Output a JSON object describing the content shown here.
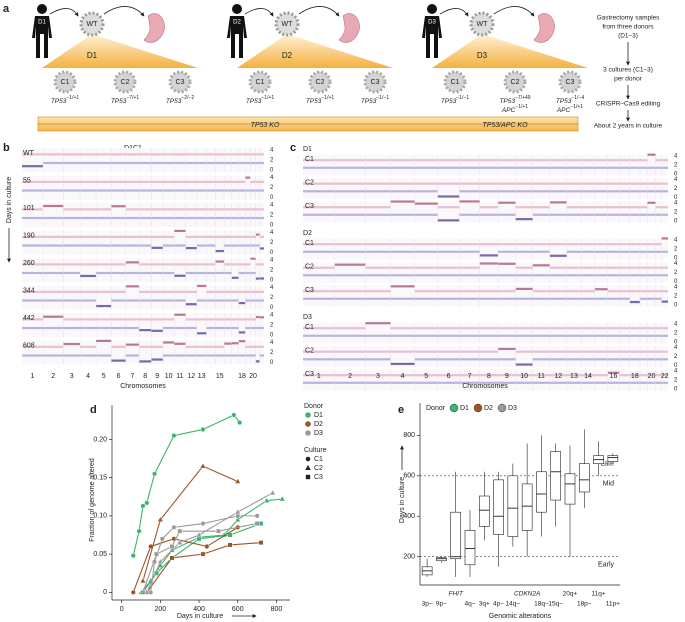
{
  "panel_a": {
    "label": "a",
    "donors": [
      {
        "name": "D1",
        "wt": "WT",
        "cultures": [
          {
            "name": "C1",
            "genotype": [
              {
                "gene": "TP53",
                "sup": "−1/+1"
              }
            ]
          },
          {
            "name": "C2",
            "genotype": [
              {
                "gene": "TP53",
                "sup": "−7/+1"
              }
            ]
          },
          {
            "name": "C3",
            "genotype": [
              {
                "gene": "TP53",
                "sup": "−2/−2"
              }
            ]
          }
        ]
      },
      {
        "name": "D2",
        "wt": "WT",
        "cultures": [
          {
            "name": "C1",
            "genotype": [
              {
                "gene": "TP53",
                "sup": "−1/+1"
              }
            ]
          },
          {
            "name": "C2",
            "genotype": [
              {
                "gene": "TP53",
                "sup": "−1/+1"
              }
            ]
          },
          {
            "name": "C3",
            "genotype": [
              {
                "gene": "TP53",
                "sup": "−1/−1"
              }
            ]
          }
        ]
      },
      {
        "name": "D3",
        "wt": "WT",
        "cultures": [
          {
            "name": "C1",
            "genotype": [
              {
                "gene": "TP53",
                "sup": "−1/−1"
              }
            ]
          },
          {
            "name": "C2",
            "genotype": [
              {
                "gene": "TP53",
                "sup": "−7/+49"
              },
              {
                "gene": "APC",
                "sup": "−1/+1"
              }
            ]
          },
          {
            "name": "C3",
            "genotype": [
              {
                "gene": "TP53",
                "sup": "−1/−4"
              },
              {
                "gene": "APC",
                "sup": "−1/+1"
              }
            ]
          }
        ]
      }
    ],
    "ko_labels": [
      "TP53 KO",
      "TP53/APC KO"
    ],
    "steps": [
      [
        "Gastrectomy samples",
        "from three donors",
        "(D1–3)"
      ],
      [
        "3 cultures (C1–3)",
        "per donor"
      ],
      [
        "CRISPR–Cas9 editing"
      ],
      [
        "About 2 years in culture"
      ]
    ]
  },
  "panel_b": {
    "label": "b",
    "title": "D1C1",
    "y_label": "Days in culture",
    "x_label": "Chromosomes",
    "tracks": [
      "WT",
      "55",
      "101",
      "190",
      "260",
      "344",
      "442",
      "608"
    ],
    "cn_ticks": [
      "4",
      "2",
      "0"
    ],
    "chromosomes": [
      "1",
      "2",
      "3",
      "4",
      "5",
      "6",
      "7",
      "8",
      "9",
      "10",
      "11",
      "12",
      "13",
      "15",
      "18",
      "20"
    ]
  },
  "panel_c": {
    "label": "c",
    "x_label": "Chromosomes",
    "donors": [
      {
        "name": "D1",
        "cultures": [
          "C1",
          "C2",
          "C3"
        ]
      },
      {
        "name": "D2",
        "cultures": [
          "C1",
          "C2",
          "C3"
        ]
      },
      {
        "name": "D3",
        "cultures": [
          "C1",
          "C2",
          "C3"
        ]
      }
    ],
    "cn_ticks": [
      "4",
      "2",
      "0"
    ],
    "chromosomes": [
      "1",
      "2",
      "3",
      "4",
      "5",
      "6",
      "7",
      "8",
      "9",
      "10",
      "11",
      "12",
      "13",
      "14",
      "16",
      "18",
      "20",
      "22"
    ]
  },
  "chart_data": [
    {
      "type": "line",
      "panel": "d",
      "x_label": "Days in culture",
      "y_label": "Fraction of genome altered",
      "xlim": [
        -50,
        870
      ],
      "ylim": [
        -0.01,
        0.245
      ],
      "xticks": [
        0,
        200,
        400,
        600,
        800
      ],
      "yticks": [
        0,
        0.05,
        {
          "value": 0.1,
          "label": "0.10"
        },
        0.15,
        {
          "value": 0.2,
          "label": "0.20"
        }
      ],
      "donor_legend": {
        "title": "Donor",
        "items": [
          {
            "name": "D1",
            "color": "#3cb46e"
          },
          {
            "name": "D2",
            "color": "#9a5528"
          },
          {
            "name": "D3",
            "color": "#9a9a9a"
          }
        ]
      },
      "culture_legend": {
        "title": "Culture",
        "items": [
          {
            "name": "C1",
            "marker": "circle"
          },
          {
            "name": "C2",
            "marker": "triangle"
          },
          {
            "name": "C3",
            "marker": "square"
          }
        ]
      },
      "series": [
        {
          "donor": "D1",
          "culture": "C1",
          "color": "#3cb46e",
          "marker": "circle",
          "x": [
            60,
            90,
            110,
            130,
            170,
            270,
            420,
            580,
            610
          ],
          "values": [
            0.048,
            0.08,
            0.113,
            0.117,
            0.155,
            0.205,
            0.213,
            0.232,
            0.222
          ]
        },
        {
          "donor": "D1",
          "culture": "C2",
          "color": "#3cb46e",
          "marker": "triangle",
          "x": [
            100,
            150,
            200,
            260,
            400,
            530,
            600,
            750,
            830
          ],
          "values": [
            0,
            0.015,
            0.035,
            0.055,
            0.072,
            0.075,
            0.095,
            0.12,
            0.122
          ]
        },
        {
          "donor": "D1",
          "culture": "C3",
          "color": "#3cb46e",
          "marker": "square",
          "x": [
            110,
            180,
            260,
            400,
            560,
            720
          ],
          "values": [
            0,
            0.025,
            0.045,
            0.07,
            0.075,
            0.09
          ]
        },
        {
          "donor": "D2",
          "culture": "C1",
          "color": "#9a5528",
          "marker": "circle",
          "x": [
            60,
            150,
            270,
            440,
            600
          ],
          "values": [
            0,
            0.06,
            0.07,
            0.06,
            0.085
          ]
        },
        {
          "donor": "D2",
          "culture": "C2",
          "color": "#9a5528",
          "marker": "triangle",
          "x": [
            110,
            200,
            420,
            600
          ],
          "values": [
            0.015,
            0.095,
            0.165,
            0.145
          ]
        },
        {
          "donor": "D2",
          "culture": "C3",
          "color": "#9a5528",
          "marker": "square",
          "x": [
            130,
            260,
            420,
            560,
            720
          ],
          "values": [
            0,
            0.045,
            0.05,
            0.062,
            0.065
          ]
        },
        {
          "donor": "D3",
          "culture": "C1",
          "color": "#9a9a9a",
          "marker": "circle",
          "x": [
            150,
            170,
            210,
            270,
            420,
            600,
            700
          ],
          "values": [
            0,
            0.04,
            0.07,
            0.085,
            0.09,
            0.1,
            0.1
          ]
        },
        {
          "donor": "D3",
          "culture": "C2",
          "color": "#9a9a9a",
          "marker": "triangle",
          "x": [
            130,
            200,
            300,
            400,
            600,
            780
          ],
          "values": [
            0,
            0.04,
            0.065,
            0.075,
            0.105,
            0.13
          ]
        },
        {
          "donor": "D3",
          "culture": "C3",
          "color": "#9a9a9a",
          "marker": "square",
          "x": [
            110,
            180,
            260,
            300,
            500,
            700
          ],
          "values": [
            0,
            0.05,
            0.06,
            0.08,
            0.08,
            0.09
          ]
        }
      ]
    },
    {
      "type": "box",
      "panel": "e",
      "x_label": "Genomic alterations",
      "y_label": "Days in culture",
      "ylim": [
        60,
        960
      ],
      "yticks": [
        200,
        400,
        600,
        800
      ],
      "donor_legend": {
        "title": "Donor",
        "items": [
          {
            "name": "D1",
            "color": "#3cb46e"
          },
          {
            "name": "D2",
            "color": "#9a5528"
          },
          {
            "name": "D3",
            "color": "#9a9a9a"
          }
        ]
      },
      "categories": [
        "3p−",
        "9p−",
        "FHIT",
        "4q−",
        "3q+",
        "4p−",
        "14q−",
        "CDKN2A",
        "18q−",
        "15q−",
        "20q+",
        "18p−",
        "11q+",
        "11p+"
      ],
      "boxes": [
        [
          100,
          110,
          130,
          150,
          190
        ],
        [
          170,
          180,
          190,
          195,
          200
        ],
        [
          100,
          190,
          200,
          420,
          620
        ],
        [
          100,
          160,
          240,
          330,
          430
        ],
        [
          280,
          350,
          430,
          500,
          620
        ],
        [
          150,
          310,
          400,
          580,
          620
        ],
        [
          250,
          300,
          440,
          600,
          660
        ],
        [
          200,
          330,
          450,
          560,
          760
        ],
        [
          300,
          420,
          510,
          620,
          800
        ],
        [
          350,
          480,
          620,
          720,
          760
        ],
        [
          200,
          460,
          560,
          610,
          750
        ],
        [
          440,
          520,
          580,
          660,
          830
        ],
        [
          600,
          660,
          680,
          700,
          770
        ],
        [
          660,
          670,
          690,
          700,
          710
        ]
      ],
      "reference_lines": [
        {
          "value": 200,
          "label": "Early"
        },
        {
          "value": 600,
          "label": "Mid"
        }
      ],
      "annotation": "Late"
    }
  ]
}
